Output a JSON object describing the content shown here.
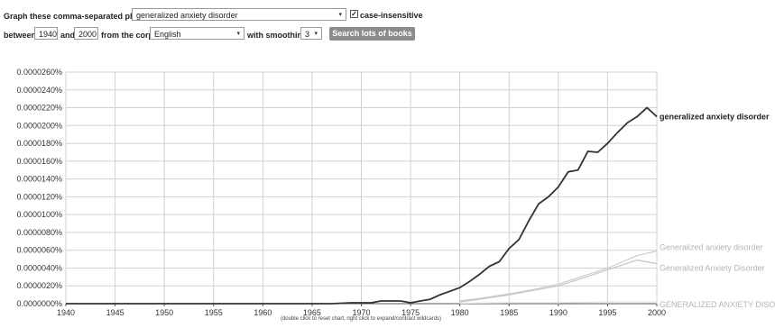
{
  "form": {
    "phrases_label": "Graph these comma-separated phrases:",
    "phrases_value": "generalized anxiety disorder",
    "case_insensitive_label": "case-insensitive",
    "between_label": "between",
    "start_year": "1940",
    "and_label": "and",
    "end_year": "2000",
    "corpus_label": "from the corpus",
    "corpus_value": "English",
    "smoothing_label": "with smoothing of",
    "smoothing_value": "3",
    "search_button": "Search lots of books",
    "case_insensitive_checked": true
  },
  "chart_note": "(double click to reset chart, right click to expand/contract wildcards)",
  "chart_data": {
    "type": "line",
    "x_range": [
      1940,
      2000
    ],
    "y_range": [
      0,
      2.6e-06
    ],
    "grid": true,
    "x_ticks": [
      "1940",
      "1945",
      "1950",
      "1955",
      "1960",
      "1965",
      "1970",
      "1975",
      "1980",
      "1985",
      "1990",
      "1995",
      "2000"
    ],
    "y_ticks": [
      "0.0000000%",
      "0.0000020%",
      "0.0000040%",
      "0.0000060%",
      "0.0000080%",
      "0.0000100%",
      "0.0000120%",
      "0.0000140%",
      "0.0000160%",
      "0.0000180%",
      "0.0000200%",
      "0.0000220%",
      "0.0000240%",
      "0.0000260%"
    ],
    "series": [
      {
        "name": "generalized anxiety disorder",
        "color": "#333333",
        "x": [
          1940,
          1965,
          1967,
          1968,
          1969,
          1970,
          1971,
          1972,
          1973,
          1974,
          1975,
          1976,
          1977,
          1978,
          1979,
          1980,
          1981,
          1982,
          1983,
          1984,
          1985,
          1986,
          1987,
          1988,
          1989,
          1990,
          1991,
          1992,
          1993,
          1994,
          1995,
          1996,
          1997,
          1998,
          1999,
          2000
        ],
        "y": [
          0,
          0,
          0,
          5e-09,
          1e-08,
          1e-08,
          1e-08,
          3e-08,
          3e-08,
          3e-08,
          1e-08,
          3e-08,
          5e-08,
          1e-07,
          1.4e-07,
          1.8e-07,
          2.5e-07,
          3.3e-07,
          4.2e-07,
          4.7e-07,
          6.2e-07,
          7.2e-07,
          9.3e-07,
          1.12e-06,
          1.2e-06,
          1.31e-06,
          1.48e-06,
          1.5e-06,
          1.71e-06,
          1.7e-06,
          1.8e-06,
          1.92e-06,
          2.03e-06,
          2.1e-06,
          2.2e-06,
          2.1e-06
        ]
      },
      {
        "name": "Generalized anxiety disorder",
        "color": "#cccccc",
        "x": [
          1980,
          1982,
          1985,
          1988,
          1990,
          1992,
          1995,
          1998,
          2000
        ],
        "y": [
          3e-08,
          6e-08,
          1.1e-07,
          1.7e-07,
          2.2e-07,
          2.9e-07,
          4e-07,
          5.4e-07,
          5.9e-07
        ]
      },
      {
        "name": "Generalized Anxiety Disorder",
        "color": "#c4c4c4",
        "x": [
          1980,
          1982,
          1985,
          1988,
          1990,
          1992,
          1995,
          1998,
          2000
        ],
        "y": [
          2e-08,
          5e-08,
          1e-07,
          1.6e-07,
          2e-07,
          2.7e-07,
          3.8e-07,
          4.9e-07,
          4.5e-07
        ]
      },
      {
        "name": "GENERALIZED ANXIETY DISORD",
        "color": "#e3e3e3",
        "x": [
          1980,
          1985,
          1990,
          1995,
          2000
        ],
        "y": [
          5e-09,
          1e-08,
          1e-08,
          2e-08,
          2e-08
        ]
      }
    ]
  }
}
